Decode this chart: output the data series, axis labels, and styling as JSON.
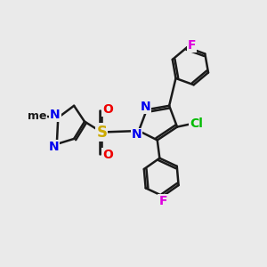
{
  "background_color": "#eaeaea",
  "bond_color": "#1a1a1a",
  "bond_width": 1.8,
  "atom_colors": {
    "N": "#0000ee",
    "S": "#ccaa00",
    "O": "#ee0000",
    "Cl": "#00bb00",
    "F": "#dd00dd",
    "C": "#1a1a1a",
    "Me": "#1a1a1a"
  },
  "font_size": 9,
  "fig_width": 3.0,
  "fig_height": 3.0,
  "dpi": 100
}
